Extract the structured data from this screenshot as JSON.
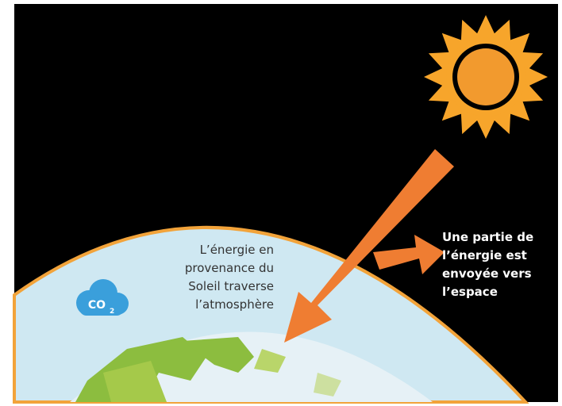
{
  "atmosphere_text": {
    "lines": [
      "L’énergie en",
      "provenance du",
      "Soleil traverse",
      "l’atmosphère"
    ]
  },
  "space_text": {
    "lines": [
      "Une partie de",
      "l’énergie est",
      "envoyée vers",
      "l’espace"
    ]
  },
  "co2_badge": {
    "main": "CO",
    "sub": "2"
  }
}
